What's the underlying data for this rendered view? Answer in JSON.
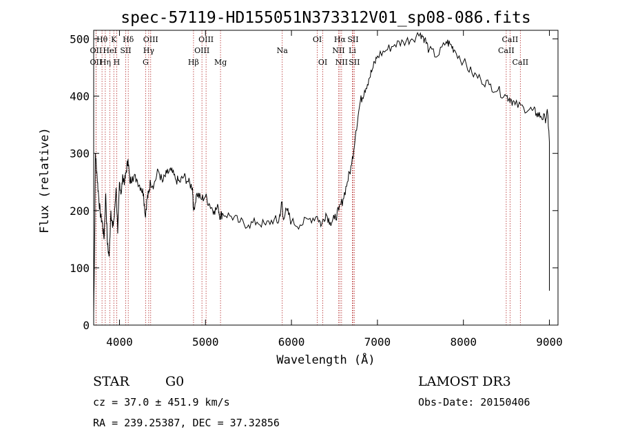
{
  "chart_data": {
    "type": "line",
    "title": "spec-57119-HD155051N373312V01_sp08-086.fits",
    "xlabel": "Wavelength (Å)",
    "ylabel": "Flux (relative)",
    "xlim": [
      3700,
      9100
    ],
    "ylim": [
      0,
      515
    ],
    "xticks": [
      4000,
      5000,
      6000,
      7000,
      8000,
      9000
    ],
    "yticks": [
      0,
      100,
      200,
      300,
      400,
      500
    ],
    "series": [
      {
        "name": "spectrum",
        "x": [
          3700,
          3710,
          3720,
          3740,
          3760,
          3780,
          3800,
          3820,
          3840,
          3860,
          3880,
          3900,
          3920,
          3940,
          3960,
          3980,
          4000,
          4020,
          4040,
          4060,
          4080,
          4100,
          4120,
          4150,
          4200,
          4250,
          4280,
          4300,
          4320,
          4340,
          4360,
          4400,
          4450,
          4500,
          4550,
          4600,
          4650,
          4700,
          4750,
          4800,
          4850,
          4860,
          4900,
          4950,
          5000,
          5050,
          5100,
          5150,
          5170,
          5200,
          5300,
          5400,
          5500,
          5600,
          5700,
          5800,
          5850,
          5890,
          5900,
          5950,
          6000,
          6100,
          6200,
          6300,
          6350,
          6400,
          6450,
          6500,
          6550,
          6600,
          6650,
          6700,
          6750,
          6800,
          6850,
          6900,
          6950,
          7000,
          7100,
          7200,
          7300,
          7400,
          7500,
          7550,
          7600,
          7700,
          7800,
          7850,
          7900,
          8000,
          8100,
          8200,
          8300,
          8400,
          8500,
          8550,
          8600,
          8700,
          8800,
          8850,
          8900,
          8950,
          8980,
          9000
        ],
        "y": [
          20,
          130,
          300,
          260,
          220,
          190,
          180,
          150,
          230,
          140,
          120,
          200,
          170,
          190,
          240,
          160,
          250,
          230,
          260,
          250,
          270,
          290,
          250,
          260,
          255,
          240,
          230,
          190,
          220,
          230,
          250,
          245,
          270,
          250,
          265,
          270,
          255,
          250,
          260,
          250,
          240,
          200,
          230,
          220,
          225,
          210,
          200,
          205,
          190,
          195,
          190,
          180,
          175,
          180,
          175,
          185,
          180,
          215,
          190,
          200,
          180,
          175,
          185,
          190,
          175,
          195,
          180,
          185,
          200,
          220,
          250,
          280,
          340,
          390,
          410,
          430,
          450,
          470,
          480,
          490,
          495,
          500,
          510,
          500,
          480,
          470,
          495,
          490,
          480,
          460,
          440,
          430,
          420,
          410,
          400,
          395,
          385,
          380,
          375,
          370,
          365,
          360,
          370,
          320
        ]
      }
    ],
    "lines": [
      {
        "name": "Hθ",
        "wl": 3797
      },
      {
        "name": "OII",
        "wl": 3727
      },
      {
        "name": "OII",
        "wl": 3727
      },
      {
        "name": "K",
        "wl": 3934
      },
      {
        "name": "HeI",
        "wl": 3889
      },
      {
        "name": "Hη",
        "wl": 3835
      },
      {
        "name": "SII",
        "wl": 4072
      },
      {
        "name": "H",
        "wl": 3968
      },
      {
        "name": "Hδ",
        "wl": 4102
      },
      {
        "name": "OIII",
        "wl": 4363
      },
      {
        "name": "Hγ",
        "wl": 4340
      },
      {
        "name": "G",
        "wl": 4304
      },
      {
        "name": "Hβ",
        "wl": 4861
      },
      {
        "name": "OIII",
        "wl": 5007
      },
      {
        "name": "OIII",
        "wl": 4959
      },
      {
        "name": "Mg",
        "wl": 5175
      },
      {
        "name": "Na",
        "wl": 5893
      },
      {
        "name": "OI",
        "wl": 6300
      },
      {
        "name": "OI",
        "wl": 6364
      },
      {
        "name": "Hα",
        "wl": 6563
      },
      {
        "name": "NII",
        "wl": 6548
      },
      {
        "name": "NII",
        "wl": 6583
      },
      {
        "name": "SII",
        "wl": 6716
      },
      {
        "name": "Li",
        "wl": 6708
      },
      {
        "name": "SII",
        "wl": 6731
      },
      {
        "name": "CaII",
        "wl": 8542
      },
      {
        "name": "CaII",
        "wl": 8498
      },
      {
        "name": "CaII",
        "wl": 8662
      }
    ]
  },
  "info": {
    "class": "STAR",
    "subclass": "G0",
    "survey": "LAMOST DR3",
    "cz": "cz = 37.0 ± 451.9 km/s",
    "obsdate": "Obs-Date: 20150406",
    "radec": "RA = 239.25387, DEC =  37.32856"
  },
  "colors": {
    "line_marker": "#b22222",
    "spectrum": "#000000"
  }
}
